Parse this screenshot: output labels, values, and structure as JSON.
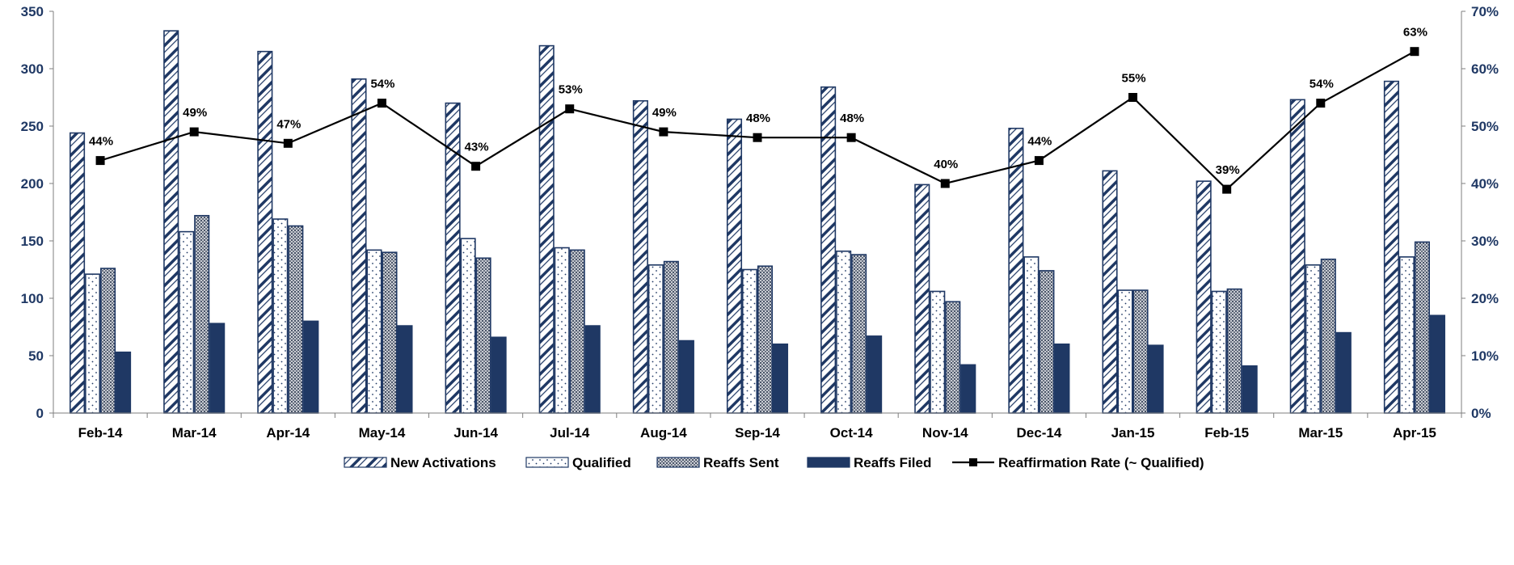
{
  "chart_data": {
    "type": "bar",
    "categories": [
      "Feb-14",
      "Mar-14",
      "Apr-14",
      "May-14",
      "Jun-14",
      "Jul-14",
      "Aug-14",
      "Sep-14",
      "Oct-14",
      "Nov-14",
      "Dec-14",
      "Jan-15",
      "Feb-15",
      "Mar-15",
      "Apr-15"
    ],
    "series": [
      {
        "name": "New Activations",
        "type": "bar",
        "axis": "left",
        "pattern": "diagonal",
        "values": [
          244,
          333,
          315,
          291,
          270,
          320,
          272,
          256,
          284,
          199,
          248,
          211,
          202,
          273,
          289
        ]
      },
      {
        "name": "Qualified",
        "type": "bar",
        "axis": "left",
        "pattern": "dots",
        "values": [
          121,
          158,
          169,
          142,
          152,
          144,
          129,
          125,
          141,
          106,
          136,
          107,
          106,
          129,
          136
        ]
      },
      {
        "name": "Reaffs Sent",
        "type": "bar",
        "axis": "left",
        "pattern": "crosshatch",
        "values": [
          126,
          172,
          163,
          140,
          135,
          142,
          132,
          128,
          138,
          97,
          124,
          107,
          108,
          134,
          149
        ]
      },
      {
        "name": "Reaffs Filed",
        "type": "bar",
        "axis": "left",
        "pattern": "solid",
        "values": [
          53,
          78,
          80,
          76,
          66,
          76,
          63,
          60,
          67,
          42,
          60,
          59,
          41,
          70,
          85
        ]
      },
      {
        "name": "Reaffirmation Rate (~ Qualified)",
        "type": "line",
        "axis": "right",
        "values": [
          44,
          49,
          47,
          54,
          43,
          53,
          49,
          48,
          48,
          40,
          44,
          55,
          39,
          54,
          63
        ]
      }
    ],
    "data_labels": [
      "44%",
      "49%",
      "47%",
      "54%",
      "43%",
      "53%",
      "49%",
      "48%",
      "48%",
      "40%",
      "44%",
      "55%",
      "39%",
      "54%",
      "63%"
    ],
    "ylim": [
      0,
      350
    ],
    "y_ticks": [
      "0",
      "50",
      "100",
      "150",
      "200",
      "250",
      "300",
      "350"
    ],
    "y2lim": [
      0,
      70
    ],
    "y2_ticks": [
      "0%",
      "10%",
      "20%",
      "30%",
      "40%",
      "50%",
      "60%",
      "70%"
    ],
    "title": "",
    "xlabel": "",
    "ylabel": "",
    "grid": false,
    "legend_position": "bottom"
  },
  "colors": {
    "navy": "#1f3864",
    "axis": "#7f7f7f",
    "left_tick_text": "#1f3864",
    "text": "#000000",
    "line": "#000000"
  }
}
